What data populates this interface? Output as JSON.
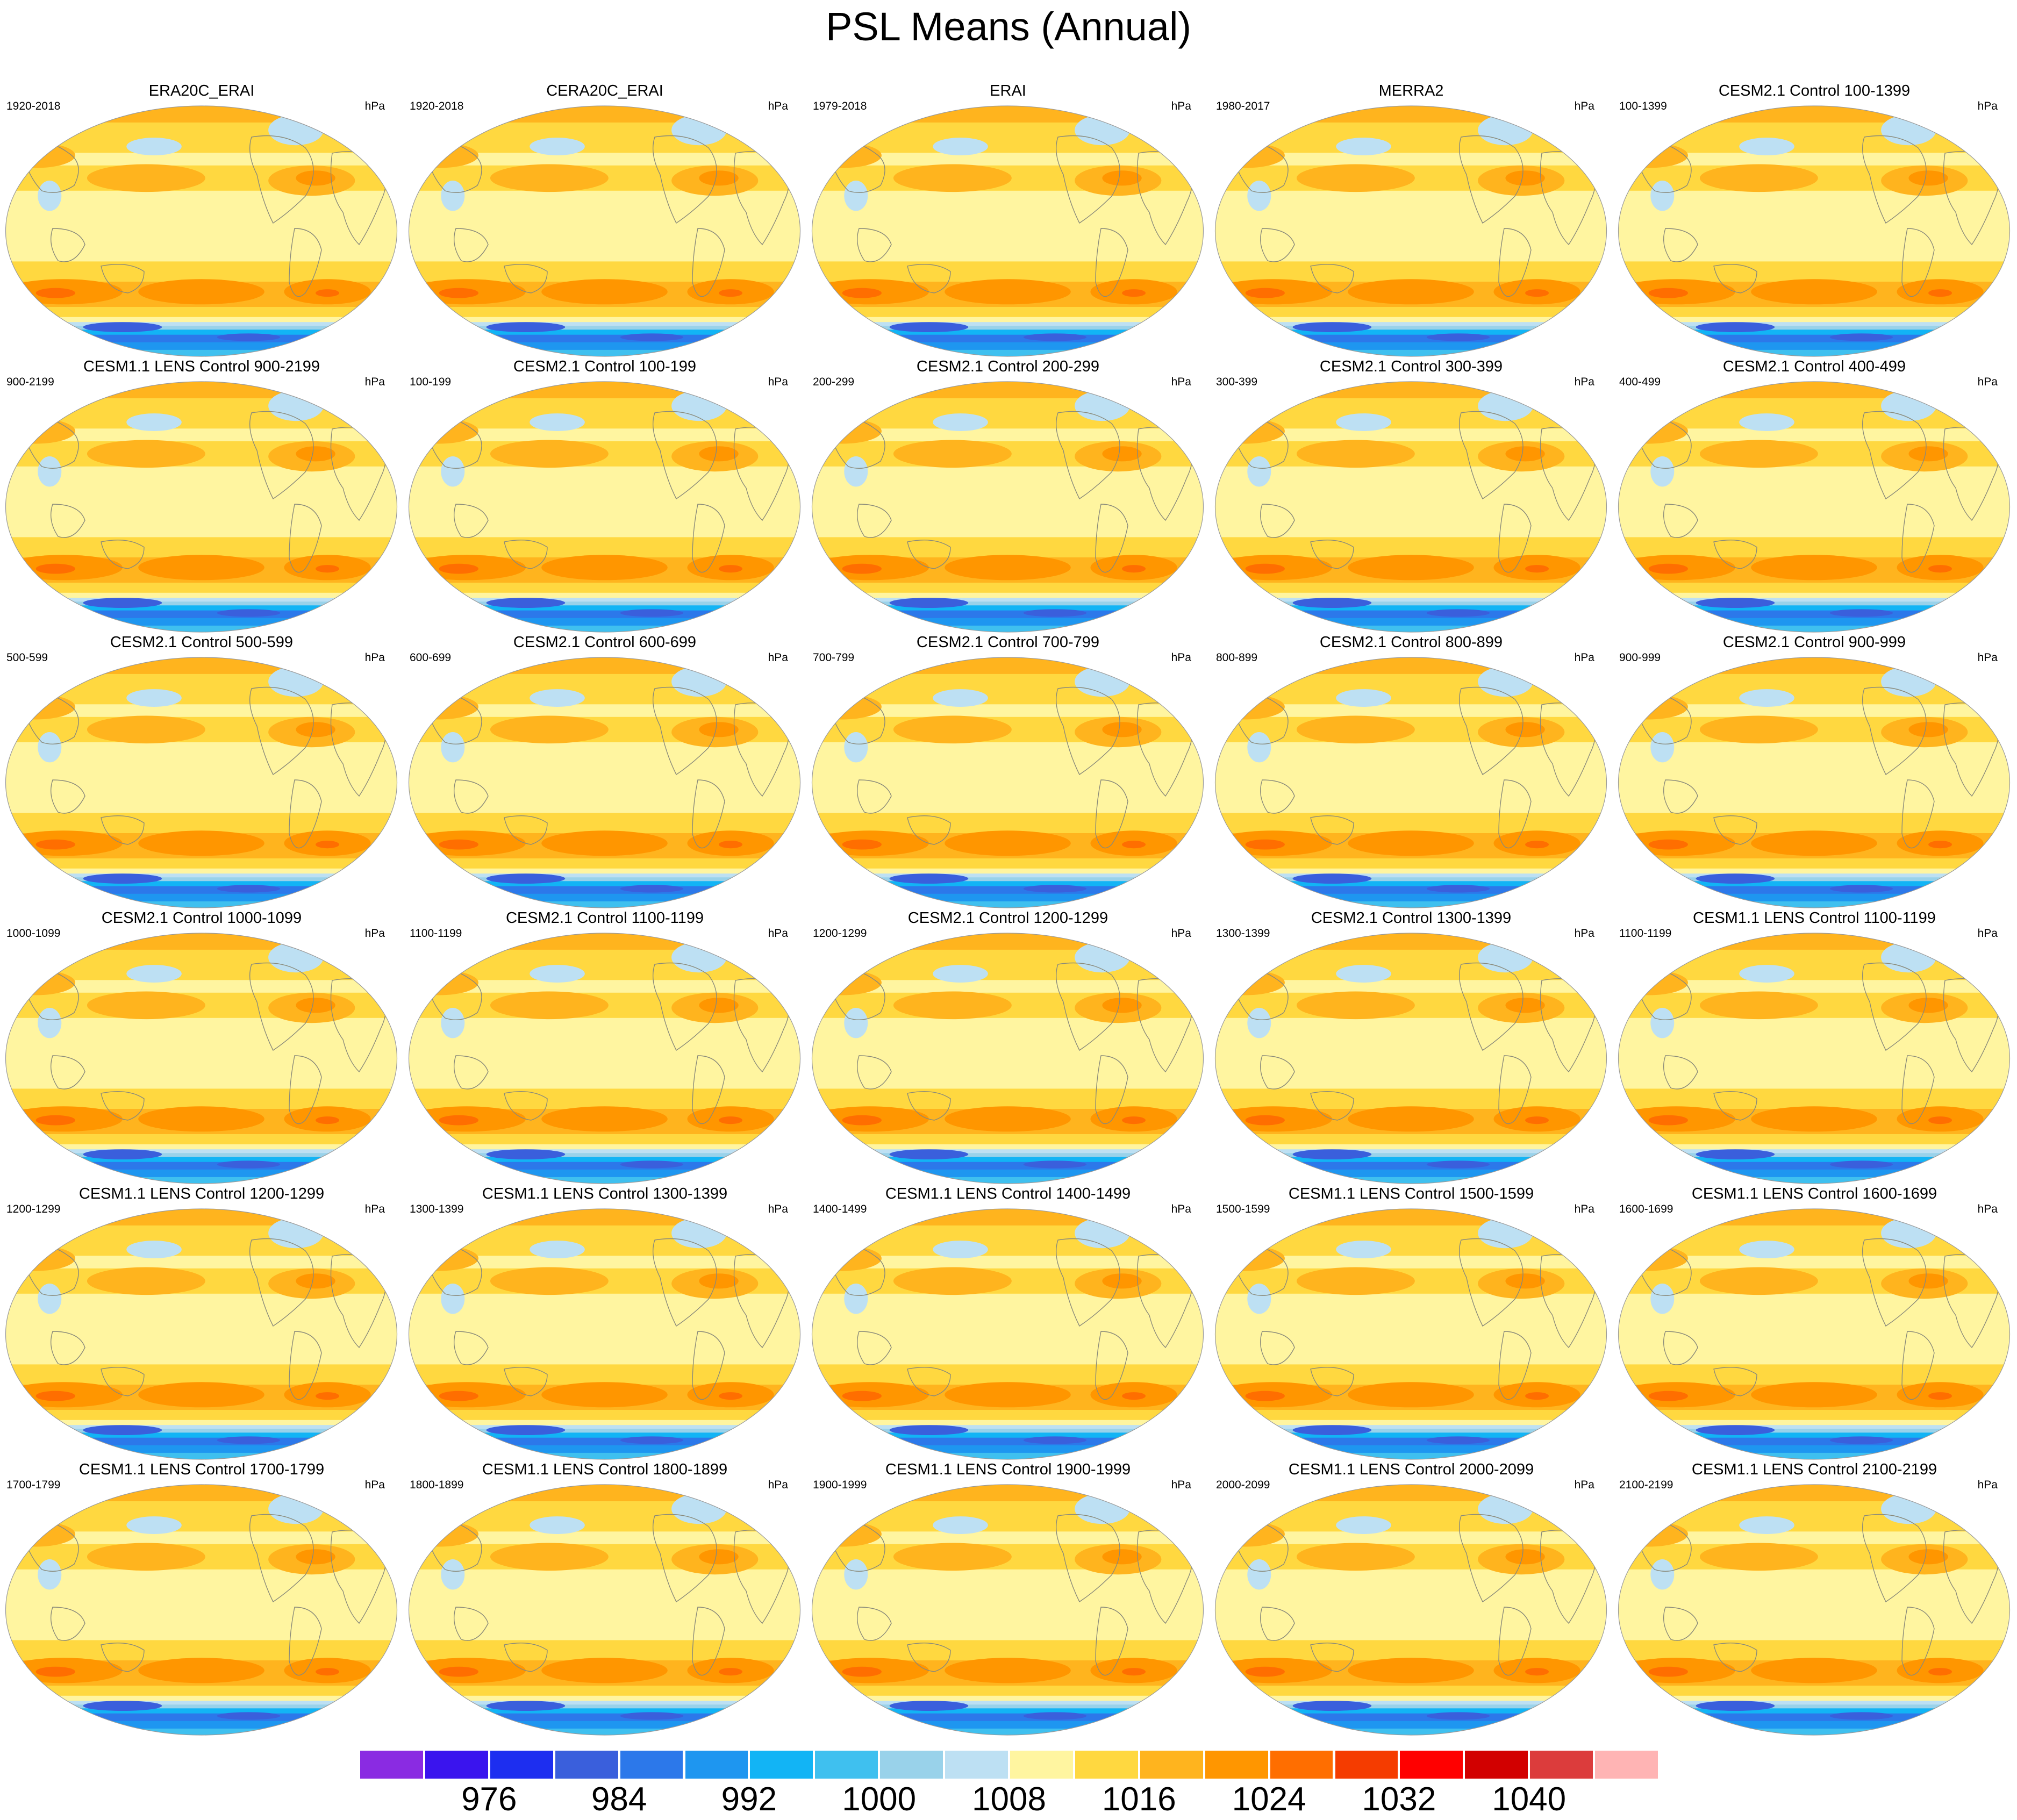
{
  "title": "PSL Means (Annual)",
  "chart_data": {
    "type": "map_contour",
    "variable": "PSL",
    "season": "Annual",
    "units": "hPa",
    "projection": "robinson-like global, Pacific-centered",
    "panels": [
      {
        "title": "ERA20C_ERAI",
        "range": "1920-2018",
        "units": "hPa"
      },
      {
        "title": "CERA20C_ERAI",
        "range": "1920-2018",
        "units": "hPa"
      },
      {
        "title": "ERAI",
        "range": "1979-2018",
        "units": "hPa"
      },
      {
        "title": "MERRA2",
        "range": "1980-2017",
        "units": "hPa"
      },
      {
        "title": "CESM2.1 Control 100-1399",
        "range": "100-1399",
        "units": "hPa"
      },
      {
        "title": "CESM1.1 LENS Control 900-2199",
        "range": "900-2199",
        "units": "hPa"
      },
      {
        "title": "CESM2.1 Control 100-199",
        "range": "100-199",
        "units": "hPa"
      },
      {
        "title": "CESM2.1 Control 200-299",
        "range": "200-299",
        "units": "hPa"
      },
      {
        "title": "CESM2.1 Control 300-399",
        "range": "300-399",
        "units": "hPa"
      },
      {
        "title": "CESM2.1 Control 400-499",
        "range": "400-499",
        "units": "hPa"
      },
      {
        "title": "CESM2.1 Control 500-599",
        "range": "500-599",
        "units": "hPa"
      },
      {
        "title": "CESM2.1 Control 600-699",
        "range": "600-699",
        "units": "hPa"
      },
      {
        "title": "CESM2.1 Control 700-799",
        "range": "700-799",
        "units": "hPa"
      },
      {
        "title": "CESM2.1 Control 800-899",
        "range": "800-899",
        "units": "hPa"
      },
      {
        "title": "CESM2.1 Control 900-999",
        "range": "900-999",
        "units": "hPa"
      },
      {
        "title": "CESM2.1 Control 1000-1099",
        "range": "1000-1099",
        "units": "hPa"
      },
      {
        "title": "CESM2.1 Control 1100-1199",
        "range": "1100-1199",
        "units": "hPa"
      },
      {
        "title": "CESM2.1 Control 1200-1299",
        "range": "1200-1299",
        "units": "hPa"
      },
      {
        "title": "CESM2.1 Control 1300-1399",
        "range": "1300-1399",
        "units": "hPa"
      },
      {
        "title": "CESM1.1 LENS Control 1100-1199",
        "range": "1100-1199",
        "units": "hPa"
      },
      {
        "title": "CESM1.1 LENS Control 1200-1299",
        "range": "1200-1299",
        "units": "hPa"
      },
      {
        "title": "CESM1.1 LENS Control 1300-1399",
        "range": "1300-1399",
        "units": "hPa"
      },
      {
        "title": "CESM1.1 LENS Control 1400-1499",
        "range": "1400-1499",
        "units": "hPa"
      },
      {
        "title": "CESM1.1 LENS Control 1500-1599",
        "range": "1500-1599",
        "units": "hPa"
      },
      {
        "title": "CESM1.1 LENS Control 1600-1699",
        "range": "1600-1699",
        "units": "hPa"
      },
      {
        "title": "CESM1.1 LENS Control 1700-1799",
        "range": "1700-1799",
        "units": "hPa"
      },
      {
        "title": "CESM1.1 LENS Control 1800-1899",
        "range": "1800-1899",
        "units": "hPa"
      },
      {
        "title": "CESM1.1 LENS Control 1900-1999",
        "range": "1900-1999",
        "units": "hPa"
      },
      {
        "title": "CESM1.1 LENS Control 2000-2099",
        "range": "2000-2099",
        "units": "hPa"
      },
      {
        "title": "CESM1.1 LENS Control 2100-2199",
        "range": "2100-2199",
        "units": "hPa"
      }
    ],
    "colorbar": {
      "colors": [
        "#8a2be2",
        "#3a14ee",
        "#1d2ef0",
        "#3a5fdc",
        "#2c78ea",
        "#1e96f0",
        "#12b4f5",
        "#3fc0ef",
        "#99d2ea",
        "#bde0f3",
        "#fff5a0",
        "#ffd840",
        "#ffb41e",
        "#ff9600",
        "#ff6e00",
        "#f53c00",
        "#ff0000",
        "#d20000",
        "#dc3c3c",
        "#ffb4b4"
      ],
      "tick_labels": [
        "976",
        "984",
        "992",
        "1000",
        "1008",
        "1016",
        "1024",
        "1032",
        "1040"
      ]
    }
  }
}
